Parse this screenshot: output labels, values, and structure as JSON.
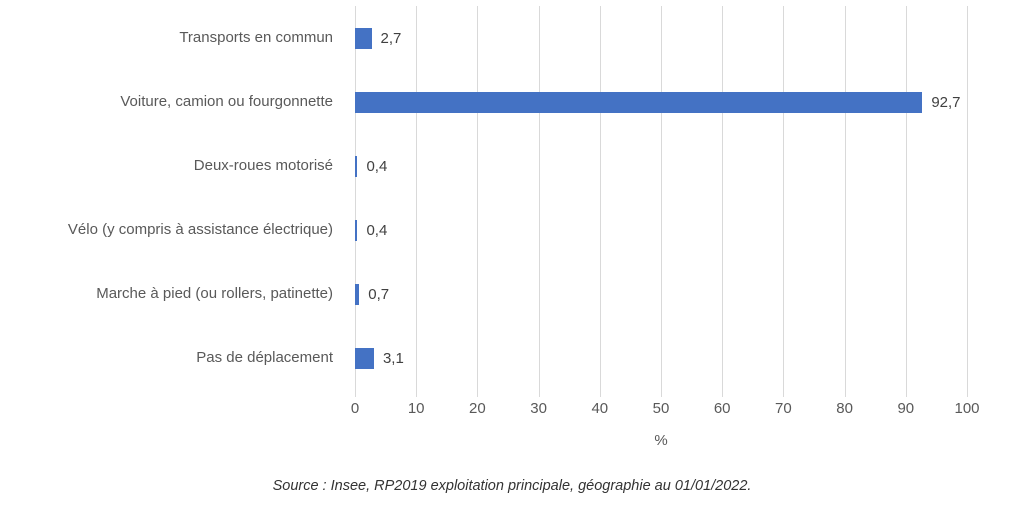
{
  "chart_data": {
    "type": "bar",
    "orientation": "horizontal",
    "categories": [
      "Transports en commun",
      "Voiture, camion ou fourgonnette",
      "Deux-roues motorisé",
      "Vélo (y compris à assistance électrique)",
      "Marche à pied (ou rollers, patinette)",
      "Pas de déplacement"
    ],
    "values": [
      2.7,
      92.7,
      0.4,
      0.4,
      0.7,
      3.1
    ],
    "value_labels": [
      "2,7",
      "92,7",
      "0,4",
      "0,4",
      "0,7",
      "3,1"
    ],
    "title": "",
    "xlabel": "%",
    "ylabel": "",
    "xlim": [
      0,
      100
    ],
    "xticks": [
      0,
      10,
      20,
      30,
      40,
      50,
      60,
      70,
      80,
      90,
      100
    ],
    "grid": "vertical",
    "legend_position": "none",
    "bar_color": "#4472c4",
    "gridline_color": "#d9d9d9",
    "category_text_color": "#595959",
    "value_text_color": "#404040",
    "source": "Source : Insee, RP2019 exploitation principale, géographie au 01/01/2022."
  }
}
